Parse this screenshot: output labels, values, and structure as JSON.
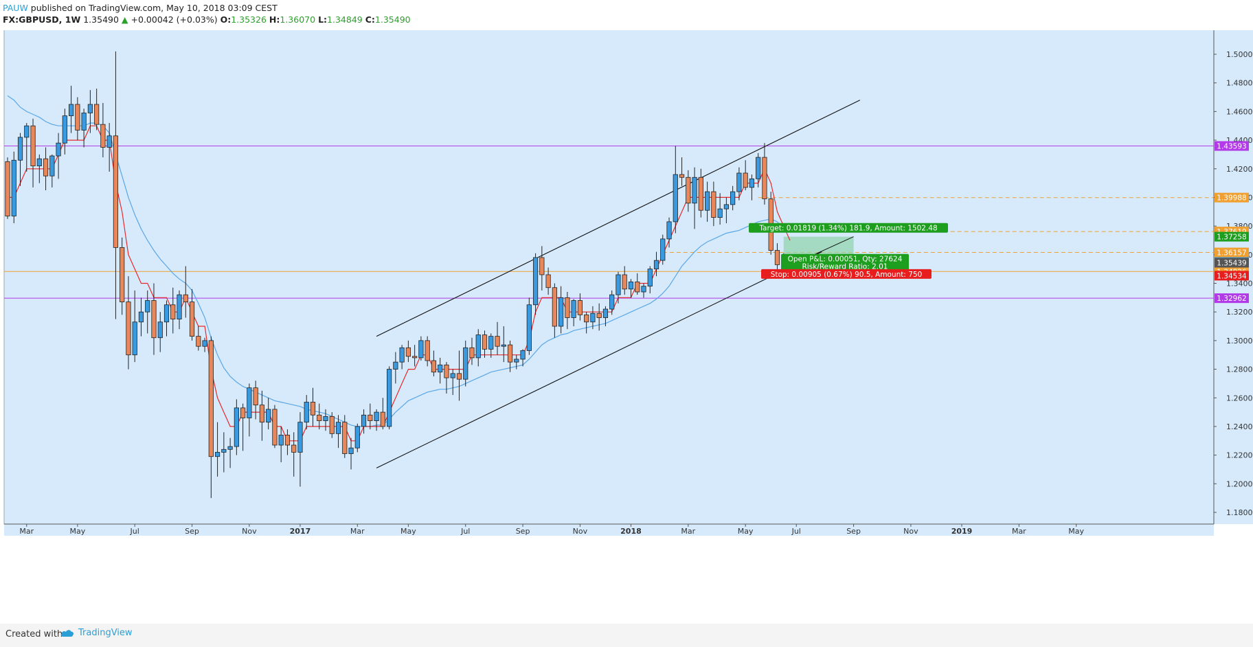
{
  "header": {
    "author": "PAUW",
    "published": "published on TradingView.com, May 10, 2018 03:09 CEST",
    "symbol": "FX:GBPUSD, 1W",
    "last": "1.35490",
    "change": "+0.00042 (+0.03%)",
    "o_label": "O:",
    "o": "1.35326",
    "h_label": "H:",
    "h": "1.36070",
    "l_label": "L:",
    "l": "1.34849",
    "c_label": "C:",
    "c": "1.35490"
  },
  "footer": {
    "created": "Created with",
    "brand": "TradingView"
  },
  "colors": {
    "background": "#d6eafc",
    "up": "#3a9ae0",
    "down": "#e8875a",
    "ema_fast": "#e62a2a",
    "ema_slow": "#5aa6e6",
    "resistance": "#b23ae8",
    "support": "#f0a030"
  },
  "chart_data": {
    "type": "candlestick",
    "symbol": "FX:GBPUSD",
    "interval": "1W",
    "ylim": [
      1.17,
      1.505
    ],
    "y_ticks": [
      "1.50000",
      "1.48000",
      "1.46000",
      "1.44000",
      "1.42000",
      "1.40000",
      "1.38000",
      "1.36000",
      "1.34000",
      "1.32000",
      "1.30000",
      "1.28000",
      "1.26000",
      "1.24000",
      "1.22000",
      "1.20000",
      "1.18000"
    ],
    "x_labels": [
      "Mar",
      "May",
      "Jul",
      "Sep",
      "Nov",
      "2017",
      "Mar",
      "May",
      "Jul",
      "Sep",
      "Nov",
      "2018",
      "Mar",
      "May",
      "Jul",
      "Sep",
      "Nov",
      "2019",
      "Mar",
      "May"
    ],
    "x_label_weeks": [
      3,
      11,
      20,
      29,
      38,
      46,
      55,
      63,
      72,
      81,
      90,
      98,
      107,
      116,
      124,
      133,
      142,
      150,
      159,
      168
    ],
    "candles": [
      {
        "o": 1.425,
        "h": 1.428,
        "l": 1.385,
        "c": 1.387
      },
      {
        "o": 1.387,
        "h": 1.432,
        "l": 1.382,
        "c": 1.426
      },
      {
        "o": 1.426,
        "h": 1.445,
        "l": 1.408,
        "c": 1.442
      },
      {
        "o": 1.442,
        "h": 1.452,
        "l": 1.418,
        "c": 1.45
      },
      {
        "o": 1.45,
        "h": 1.455,
        "l": 1.407,
        "c": 1.422
      },
      {
        "o": 1.422,
        "h": 1.43,
        "l": 1.41,
        "c": 1.427
      },
      {
        "o": 1.427,
        "h": 1.435,
        "l": 1.405,
        "c": 1.415
      },
      {
        "o": 1.415,
        "h": 1.43,
        "l": 1.407,
        "c": 1.429
      },
      {
        "o": 1.429,
        "h": 1.445,
        "l": 1.413,
        "c": 1.438
      },
      {
        "o": 1.438,
        "h": 1.462,
        "l": 1.43,
        "c": 1.457
      },
      {
        "o": 1.457,
        "h": 1.478,
        "l": 1.445,
        "c": 1.465
      },
      {
        "o": 1.465,
        "h": 1.47,
        "l": 1.44,
        "c": 1.447
      },
      {
        "o": 1.447,
        "h": 1.462,
        "l": 1.435,
        "c": 1.459
      },
      {
        "o": 1.459,
        "h": 1.475,
        "l": 1.445,
        "c": 1.465
      },
      {
        "o": 1.465,
        "h": 1.476,
        "l": 1.447,
        "c": 1.451
      },
      {
        "o": 1.451,
        "h": 1.466,
        "l": 1.428,
        "c": 1.435
      },
      {
        "o": 1.435,
        "h": 1.452,
        "l": 1.418,
        "c": 1.443
      },
      {
        "o": 1.443,
        "h": 1.502,
        "l": 1.315,
        "c": 1.365
      },
      {
        "o": 1.365,
        "h": 1.372,
        "l": 1.318,
        "c": 1.327
      },
      {
        "o": 1.327,
        "h": 1.345,
        "l": 1.28,
        "c": 1.29
      },
      {
        "o": 1.29,
        "h": 1.335,
        "l": 1.285,
        "c": 1.313
      },
      {
        "o": 1.313,
        "h": 1.33,
        "l": 1.303,
        "c": 1.32
      },
      {
        "o": 1.32,
        "h": 1.335,
        "l": 1.305,
        "c": 1.328
      },
      {
        "o": 1.328,
        "h": 1.34,
        "l": 1.29,
        "c": 1.302
      },
      {
        "o": 1.302,
        "h": 1.32,
        "l": 1.292,
        "c": 1.313
      },
      {
        "o": 1.313,
        "h": 1.328,
        "l": 1.303,
        "c": 1.325
      },
      {
        "o": 1.325,
        "h": 1.337,
        "l": 1.305,
        "c": 1.315
      },
      {
        "o": 1.315,
        "h": 1.335,
        "l": 1.308,
        "c": 1.332
      },
      {
        "o": 1.332,
        "h": 1.352,
        "l": 1.316,
        "c": 1.327
      },
      {
        "o": 1.327,
        "h": 1.336,
        "l": 1.3,
        "c": 1.303
      },
      {
        "o": 1.303,
        "h": 1.31,
        "l": 1.293,
        "c": 1.296
      },
      {
        "o": 1.296,
        "h": 1.302,
        "l": 1.292,
        "c": 1.3
      },
      {
        "o": 1.3,
        "h": 1.303,
        "l": 1.19,
        "c": 1.219
      },
      {
        "o": 1.219,
        "h": 1.243,
        "l": 1.205,
        "c": 1.222
      },
      {
        "o": 1.222,
        "h": 1.236,
        "l": 1.208,
        "c": 1.224
      },
      {
        "o": 1.224,
        "h": 1.232,
        "l": 1.211,
        "c": 1.226
      },
      {
        "o": 1.226,
        "h": 1.259,
        "l": 1.22,
        "c": 1.253
      },
      {
        "o": 1.253,
        "h": 1.256,
        "l": 1.223,
        "c": 1.246
      },
      {
        "o": 1.246,
        "h": 1.27,
        "l": 1.233,
        "c": 1.267
      },
      {
        "o": 1.267,
        "h": 1.272,
        "l": 1.245,
        "c": 1.255
      },
      {
        "o": 1.255,
        "h": 1.265,
        "l": 1.23,
        "c": 1.243
      },
      {
        "o": 1.243,
        "h": 1.26,
        "l": 1.238,
        "c": 1.252
      },
      {
        "o": 1.252,
        "h": 1.255,
        "l": 1.225,
        "c": 1.227
      },
      {
        "o": 1.227,
        "h": 1.24,
        "l": 1.215,
        "c": 1.234
      },
      {
        "o": 1.234,
        "h": 1.238,
        "l": 1.22,
        "c": 1.227
      },
      {
        "o": 1.227,
        "h": 1.236,
        "l": 1.205,
        "c": 1.222
      },
      {
        "o": 1.222,
        "h": 1.25,
        "l": 1.198,
        "c": 1.243
      },
      {
        "o": 1.243,
        "h": 1.262,
        "l": 1.238,
        "c": 1.257
      },
      {
        "o": 1.257,
        "h": 1.267,
        "l": 1.24,
        "c": 1.248
      },
      {
        "o": 1.248,
        "h": 1.256,
        "l": 1.238,
        "c": 1.244
      },
      {
        "o": 1.244,
        "h": 1.252,
        "l": 1.237,
        "c": 1.247
      },
      {
        "o": 1.247,
        "h": 1.25,
        "l": 1.232,
        "c": 1.235
      },
      {
        "o": 1.235,
        "h": 1.248,
        "l": 1.225,
        "c": 1.243
      },
      {
        "o": 1.243,
        "h": 1.248,
        "l": 1.218,
        "c": 1.221
      },
      {
        "o": 1.221,
        "h": 1.232,
        "l": 1.21,
        "c": 1.225
      },
      {
        "o": 1.225,
        "h": 1.242,
        "l": 1.222,
        "c": 1.24
      },
      {
        "o": 1.24,
        "h": 1.252,
        "l": 1.235,
        "c": 1.248
      },
      {
        "o": 1.248,
        "h": 1.256,
        "l": 1.238,
        "c": 1.244
      },
      {
        "o": 1.244,
        "h": 1.252,
        "l": 1.237,
        "c": 1.25
      },
      {
        "o": 1.25,
        "h": 1.26,
        "l": 1.238,
        "c": 1.24
      },
      {
        "o": 1.24,
        "h": 1.282,
        "l": 1.238,
        "c": 1.28
      },
      {
        "o": 1.28,
        "h": 1.292,
        "l": 1.27,
        "c": 1.285
      },
      {
        "o": 1.285,
        "h": 1.297,
        "l": 1.28,
        "c": 1.295
      },
      {
        "o": 1.295,
        "h": 1.3,
        "l": 1.285,
        "c": 1.289
      },
      {
        "o": 1.289,
        "h": 1.297,
        "l": 1.282,
        "c": 1.288
      },
      {
        "o": 1.288,
        "h": 1.303,
        "l": 1.286,
        "c": 1.3
      },
      {
        "o": 1.3,
        "h": 1.303,
        "l": 1.282,
        "c": 1.286
      },
      {
        "o": 1.286,
        "h": 1.293,
        "l": 1.275,
        "c": 1.278
      },
      {
        "o": 1.278,
        "h": 1.288,
        "l": 1.27,
        "c": 1.283
      },
      {
        "o": 1.283,
        "h": 1.285,
        "l": 1.263,
        "c": 1.274
      },
      {
        "o": 1.274,
        "h": 1.28,
        "l": 1.262,
        "c": 1.277
      },
      {
        "o": 1.277,
        "h": 1.293,
        "l": 1.258,
        "c": 1.273
      },
      {
        "o": 1.273,
        "h": 1.3,
        "l": 1.268,
        "c": 1.295
      },
      {
        "o": 1.295,
        "h": 1.302,
        "l": 1.283,
        "c": 1.288
      },
      {
        "o": 1.288,
        "h": 1.308,
        "l": 1.282,
        "c": 1.304
      },
      {
        "o": 1.304,
        "h": 1.307,
        "l": 1.288,
        "c": 1.294
      },
      {
        "o": 1.294,
        "h": 1.305,
        "l": 1.288,
        "c": 1.303
      },
      {
        "o": 1.303,
        "h": 1.313,
        "l": 1.29,
        "c": 1.296
      },
      {
        "o": 1.296,
        "h": 1.31,
        "l": 1.285,
        "c": 1.297
      },
      {
        "o": 1.297,
        "h": 1.3,
        "l": 1.278,
        "c": 1.285
      },
      {
        "o": 1.285,
        "h": 1.29,
        "l": 1.28,
        "c": 1.287
      },
      {
        "o": 1.287,
        "h": 1.294,
        "l": 1.282,
        "c": 1.293
      },
      {
        "o": 1.293,
        "h": 1.33,
        "l": 1.29,
        "c": 1.325
      },
      {
        "o": 1.325,
        "h": 1.361,
        "l": 1.318,
        "c": 1.358
      },
      {
        "o": 1.358,
        "h": 1.366,
        "l": 1.335,
        "c": 1.346
      },
      {
        "o": 1.346,
        "h": 1.351,
        "l": 1.332,
        "c": 1.337
      },
      {
        "o": 1.337,
        "h": 1.34,
        "l": 1.302,
        "c": 1.31
      },
      {
        "o": 1.31,
        "h": 1.338,
        "l": 1.305,
        "c": 1.33
      },
      {
        "o": 1.33,
        "h": 1.334,
        "l": 1.308,
        "c": 1.316
      },
      {
        "o": 1.316,
        "h": 1.329,
        "l": 1.31,
        "c": 1.328
      },
      {
        "o": 1.328,
        "h": 1.333,
        "l": 1.314,
        "c": 1.318
      },
      {
        "o": 1.318,
        "h": 1.32,
        "l": 1.305,
        "c": 1.313
      },
      {
        "o": 1.313,
        "h": 1.324,
        "l": 1.308,
        "c": 1.319
      },
      {
        "o": 1.319,
        "h": 1.326,
        "l": 1.307,
        "c": 1.316
      },
      {
        "o": 1.316,
        "h": 1.324,
        "l": 1.31,
        "c": 1.322
      },
      {
        "o": 1.322,
        "h": 1.335,
        "l": 1.318,
        "c": 1.332
      },
      {
        "o": 1.332,
        "h": 1.348,
        "l": 1.326,
        "c": 1.346
      },
      {
        "o": 1.346,
        "h": 1.352,
        "l": 1.332,
        "c": 1.336
      },
      {
        "o": 1.336,
        "h": 1.343,
        "l": 1.33,
        "c": 1.341
      },
      {
        "o": 1.341,
        "h": 1.347,
        "l": 1.332,
        "c": 1.334
      },
      {
        "o": 1.334,
        "h": 1.34,
        "l": 1.33,
        "c": 1.338
      },
      {
        "o": 1.338,
        "h": 1.352,
        "l": 1.333,
        "c": 1.35
      },
      {
        "o": 1.35,
        "h": 1.362,
        "l": 1.345,
        "c": 1.356
      },
      {
        "o": 1.356,
        "h": 1.374,
        "l": 1.353,
        "c": 1.371
      },
      {
        "o": 1.371,
        "h": 1.386,
        "l": 1.365,
        "c": 1.383
      },
      {
        "o": 1.383,
        "h": 1.436,
        "l": 1.375,
        "c": 1.416
      },
      {
        "o": 1.416,
        "h": 1.428,
        "l": 1.408,
        "c": 1.414
      },
      {
        "o": 1.414,
        "h": 1.419,
        "l": 1.39,
        "c": 1.396
      },
      {
        "o": 1.396,
        "h": 1.421,
        "l": 1.378,
        "c": 1.414
      },
      {
        "o": 1.414,
        "h": 1.42,
        "l": 1.386,
        "c": 1.391
      },
      {
        "o": 1.391,
        "h": 1.411,
        "l": 1.383,
        "c": 1.404
      },
      {
        "o": 1.404,
        "h": 1.411,
        "l": 1.38,
        "c": 1.386
      },
      {
        "o": 1.386,
        "h": 1.403,
        "l": 1.381,
        "c": 1.392
      },
      {
        "o": 1.392,
        "h": 1.4,
        "l": 1.382,
        "c": 1.395
      },
      {
        "o": 1.395,
        "h": 1.408,
        "l": 1.391,
        "c": 1.404
      },
      {
        "o": 1.404,
        "h": 1.421,
        "l": 1.398,
        "c": 1.417
      },
      {
        "o": 1.417,
        "h": 1.426,
        "l": 1.405,
        "c": 1.407
      },
      {
        "o": 1.407,
        "h": 1.416,
        "l": 1.398,
        "c": 1.413
      },
      {
        "o": 1.413,
        "h": 1.431,
        "l": 1.407,
        "c": 1.428
      },
      {
        "o": 1.428,
        "h": 1.438,
        "l": 1.395,
        "c": 1.399
      },
      {
        "o": 1.399,
        "h": 1.404,
        "l": 1.36,
        "c": 1.363
      },
      {
        "o": 1.363,
        "h": 1.368,
        "l": 1.348,
        "c": 1.353
      },
      {
        "o": 1.353,
        "h": 1.361,
        "l": 1.348,
        "c": 1.355
      }
    ],
    "ema_fast_label": "",
    "ema_slow_label": "",
    "ema_fast": [
      1.4,
      1.4,
      1.41,
      1.42,
      1.42,
      1.42,
      1.42,
      1.42,
      1.43,
      1.44,
      1.44,
      1.44,
      1.44,
      1.45,
      1.45,
      1.44,
      1.44,
      1.41,
      1.39,
      1.36,
      1.35,
      1.34,
      1.34,
      1.33,
      1.33,
      1.33,
      1.32,
      1.32,
      1.33,
      1.32,
      1.31,
      1.31,
      1.28,
      1.26,
      1.25,
      1.24,
      1.24,
      1.25,
      1.25,
      1.25,
      1.25,
      1.25,
      1.24,
      1.24,
      1.23,
      1.23,
      1.23,
      1.24,
      1.24,
      1.24,
      1.24,
      1.24,
      1.24,
      1.24,
      1.23,
      1.23,
      1.24,
      1.24,
      1.24,
      1.24,
      1.25,
      1.26,
      1.27,
      1.28,
      1.28,
      1.29,
      1.29,
      1.28,
      1.28,
      1.28,
      1.28,
      1.28,
      1.28,
      1.29,
      1.29,
      1.29,
      1.29,
      1.29,
      1.29,
      1.29,
      1.29,
      1.29,
      1.3,
      1.32,
      1.33,
      1.33,
      1.33,
      1.33,
      1.32,
      1.32,
      1.32,
      1.32,
      1.32,
      1.32,
      1.32,
      1.32,
      1.33,
      1.33,
      1.33,
      1.34,
      1.34,
      1.34,
      1.35,
      1.36,
      1.37,
      1.38,
      1.39,
      1.4,
      1.4,
      1.4,
      1.4,
      1.4,
      1.4,
      1.4,
      1.4,
      1.4,
      1.41,
      1.41,
      1.41,
      1.42,
      1.41,
      1.39,
      1.38,
      1.37
    ],
    "ema_slow": [
      1.471,
      1.468,
      1.463,
      1.46,
      1.458,
      1.456,
      1.453,
      1.451,
      1.45,
      1.45,
      1.45,
      1.45,
      1.45,
      1.452,
      1.452,
      1.45,
      1.445,
      1.43,
      1.415,
      1.4,
      1.388,
      1.378,
      1.37,
      1.363,
      1.357,
      1.352,
      1.347,
      1.343,
      1.34,
      1.335,
      1.326,
      1.316,
      1.302,
      1.29,
      1.281,
      1.275,
      1.271,
      1.268,
      1.266,
      1.264,
      1.262,
      1.26,
      1.258,
      1.257,
      1.256,
      1.255,
      1.254,
      1.252,
      1.251,
      1.25,
      1.249,
      1.247,
      1.245,
      1.243,
      1.241,
      1.24,
      1.24,
      1.24,
      1.241,
      1.241,
      1.245,
      1.25,
      1.254,
      1.258,
      1.26,
      1.262,
      1.264,
      1.265,
      1.266,
      1.266,
      1.267,
      1.268,
      1.27,
      1.272,
      1.274,
      1.276,
      1.278,
      1.279,
      1.28,
      1.281,
      1.282,
      1.283,
      1.287,
      1.292,
      1.297,
      1.3,
      1.302,
      1.304,
      1.305,
      1.307,
      1.308,
      1.309,
      1.31,
      1.311,
      1.312,
      1.314,
      1.316,
      1.318,
      1.32,
      1.322,
      1.324,
      1.326,
      1.329,
      1.333,
      1.338,
      1.345,
      1.352,
      1.357,
      1.362,
      1.366,
      1.369,
      1.371,
      1.373,
      1.375,
      1.376,
      1.377,
      1.379,
      1.381,
      1.383,
      1.384,
      1.385,
      1.383,
      1.378
    ],
    "horizontal_lines": [
      {
        "value": 1.43593,
        "label": "1.43593",
        "color": "#b23ae8",
        "style": "solid"
      },
      {
        "value": 1.32962,
        "label": "1.32962",
        "color": "#b23ae8",
        "style": "solid"
      },
      {
        "value": 1.34826,
        "label": "1.34826",
        "color": "#f0a030",
        "style": "solid"
      },
      {
        "value": 1.39988,
        "label": "1.39988",
        "color": "#f0a030",
        "style": "dashed",
        "start_week": 118
      },
      {
        "value": 1.37619,
        "label": "1.37619",
        "color": "#f0a030",
        "style": "dashed",
        "start_week": 118
      },
      {
        "value": 1.36157,
        "label": "1.36157",
        "color": "#f0a030",
        "style": "dashed",
        "start_week": 103
      }
    ],
    "price_tags": [
      {
        "value": 1.37258,
        "label": "1.37258",
        "color": "#1e9e1e"
      },
      {
        "value": 1.3549,
        "label": "1.35490",
        "color": "#3a9ae0"
      },
      {
        "value": 1.35439,
        "label": "1.35439",
        "color": "#555555"
      },
      {
        "value": 1.34534,
        "label": "1.34534",
        "color": "#e81e1e"
      }
    ],
    "channel_upper": [
      {
        "week": 58,
        "price": 1.303
      },
      {
        "week": 134,
        "price": 1.468
      }
    ],
    "channel_lower": [
      {
        "week": 58,
        "price": 1.211
      },
      {
        "week": 128,
        "price": 1.362
      }
    ],
    "position": {
      "entry": 1.35439,
      "target": 1.37258,
      "stop": 1.34534,
      "start_week": 122,
      "end_week": 133,
      "target_label": "Target: 0.01819 (1.34%) 181.9, Amount: 1502.48",
      "open_label": "Open P&L: 0.00051, Qty: 27624",
      "rr_label": "Risk/Reward Ratio: 2.01",
      "stop_label": "Stop: 0.00905 (0.67%) 90.5, Amount: 750"
    }
  }
}
